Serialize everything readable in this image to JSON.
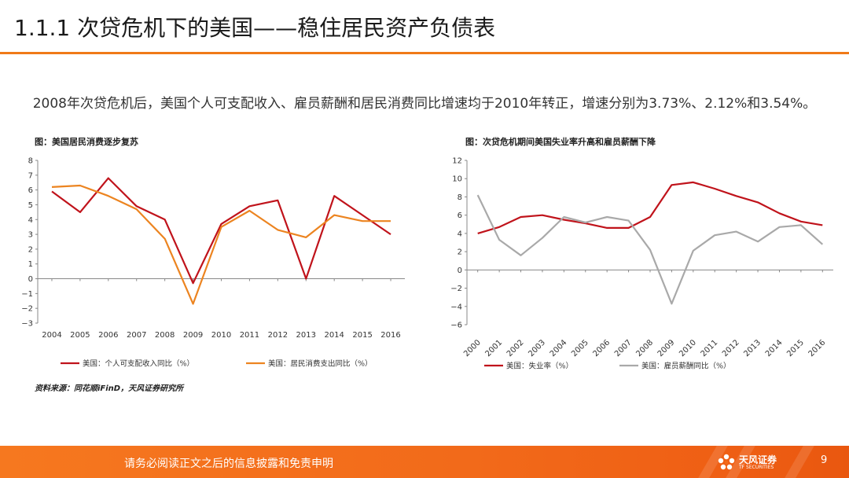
{
  "slide": {
    "title": "1.1.1 次贷危机下的美国——稳住居民资产负债表",
    "summary": "2008年次贷危机后，美国个人可支配收入、雇员薪酬和居民消费同比增速均于2010年转正，增速分别为3.73%、2.12%和3.54%。",
    "source": "资料来源：同花顺iFinD，天风证券研究所"
  },
  "colors": {
    "accent": "#f07a18",
    "series_red": "#c0131b",
    "series_orange": "#ec8420",
    "series_gray": "#a9a9a9",
    "footer": "#f26a1a"
  },
  "footer": {
    "disclaimer": "请务必阅读正文之后的信息披露和免责申明",
    "page_number": "9",
    "logo_name": "天风证券",
    "logo_sub": "TF SECURITIES"
  },
  "chart_data": [
    {
      "type": "line",
      "title": "图：美国居民消费逐步复苏",
      "categories": [
        "2004",
        "2005",
        "2006",
        "2007",
        "2008",
        "2009",
        "2010",
        "2011",
        "2012",
        "2013",
        "2014",
        "2015",
        "2016"
      ],
      "ylim": [
        -3,
        8
      ],
      "yticks": [
        -3,
        -2,
        -1,
        0,
        1,
        2,
        3,
        4,
        5,
        6,
        7,
        8
      ],
      "ytick_labels": [
        "−3",
        "−2",
        "−1",
        "0",
        "1",
        "2",
        "3",
        "4",
        "5",
        "6",
        "7",
        "8"
      ],
      "xlabel": "",
      "ylabel": "",
      "grid": false,
      "legend": "bottom",
      "series": [
        {
          "name": "美国：个人可支配收入同比（%）",
          "color": "#c0131b",
          "values": [
            5.9,
            4.5,
            6.8,
            4.9,
            4.0,
            -0.3,
            3.7,
            4.9,
            5.3,
            0.0,
            5.6,
            4.3,
            3.0
          ]
        },
        {
          "name": "美国：居民消费支出同比（%）",
          "color": "#ec8420",
          "values": [
            6.2,
            6.3,
            5.6,
            4.7,
            2.7,
            -1.7,
            3.5,
            4.6,
            3.3,
            2.8,
            4.3,
            3.9,
            3.9
          ]
        }
      ]
    },
    {
      "type": "line",
      "title": "图：次贷危机期间美国失业率升高和雇员薪酬下降",
      "categories": [
        "2000",
        "2001",
        "2002",
        "2003",
        "2004",
        "2005",
        "2006",
        "2007",
        "2008",
        "2009",
        "2010",
        "2011",
        "2012",
        "2013",
        "2014",
        "2015",
        "2016"
      ],
      "ylim": [
        -6,
        12
      ],
      "yticks": [
        -6,
        -4,
        -2,
        0,
        2,
        4,
        6,
        8,
        10,
        12
      ],
      "ytick_labels": [
        "−6",
        "−4",
        "−2",
        "0",
        "2",
        "4",
        "6",
        "8",
        "10",
        "12"
      ],
      "xlabel": "",
      "ylabel": "",
      "grid": false,
      "legend": "bottom",
      "series": [
        {
          "name": "美国：失业率（%）",
          "color": "#c0131b",
          "values": [
            4.0,
            4.7,
            5.8,
            6.0,
            5.5,
            5.1,
            4.6,
            4.6,
            5.8,
            9.3,
            9.6,
            8.9,
            8.1,
            7.4,
            6.2,
            5.3,
            4.9
          ]
        },
        {
          "name": "美国：雇员薪酬同比（%）",
          "color": "#a9a9a9",
          "values": [
            8.2,
            3.3,
            1.6,
            3.5,
            5.8,
            5.2,
            5.8,
            5.4,
            2.2,
            -3.7,
            2.1,
            3.8,
            4.2,
            3.1,
            4.7,
            4.9,
            2.8
          ]
        }
      ]
    }
  ]
}
